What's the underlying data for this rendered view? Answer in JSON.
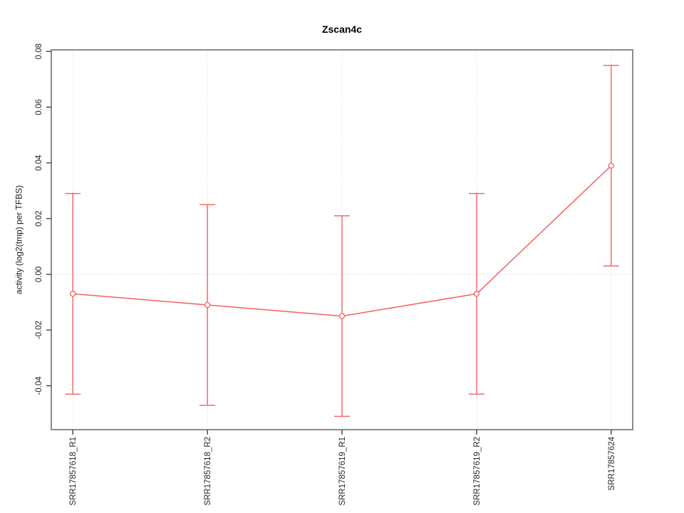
{
  "chart_data": {
    "type": "line",
    "title": "Zscan4c",
    "xlabel": "",
    "ylabel": "activity (log2(tmp) per TFBS)",
    "categories": [
      "SRR17857618_R1",
      "SRR17857618_R2",
      "SRR17857619_R1",
      "SRR17857619_R2",
      "SRR17857624"
    ],
    "values": [
      -0.007,
      -0.011,
      -0.015,
      -0.007,
      0.039
    ],
    "error_upper": [
      0.029,
      0.025,
      0.021,
      0.029,
      0.075
    ],
    "error_lower": [
      -0.043,
      -0.047,
      -0.051,
      -0.043,
      0.003
    ],
    "ylim": [
      -0.056,
      0.0806
    ],
    "yticks": [
      -0.04,
      -0.02,
      0.0,
      0.02,
      0.04,
      0.06,
      0.08
    ],
    "grid": {
      "vertical": "dotted line at each category",
      "horizontal": "dotted line at y = 0"
    },
    "legend": "none",
    "marker": "open-circle",
    "colors": {
      "series": "#f75f5f",
      "error_bar": "#f96868",
      "grid": "#d8d8d8",
      "box": "#8c8c8c",
      "tick": "#4d4d4d",
      "text": "#262626",
      "background": "#ffffff"
    }
  }
}
